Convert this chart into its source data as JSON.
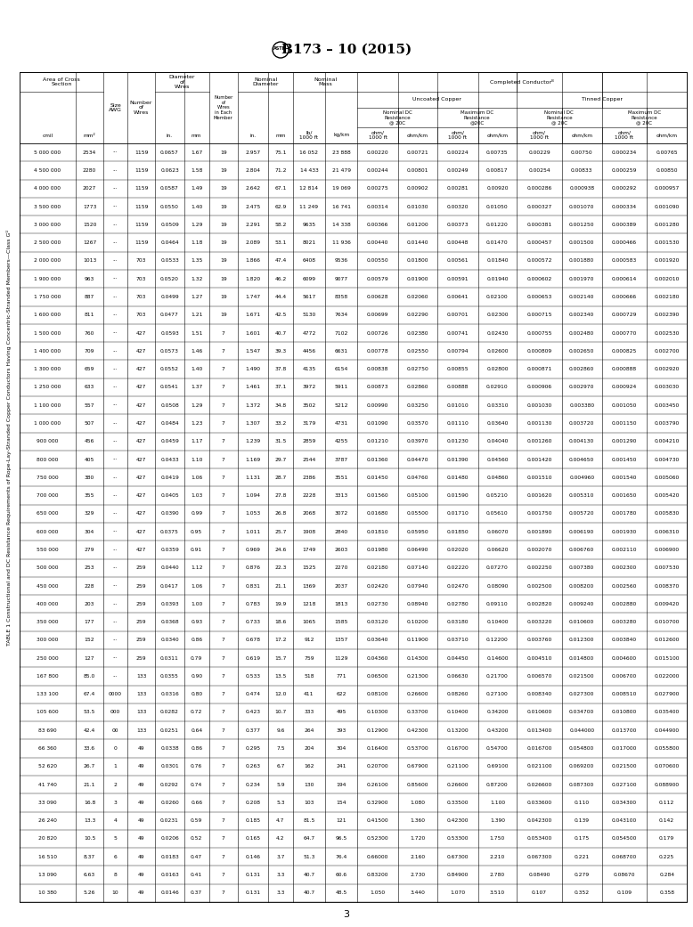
{
  "title": "B173 – 10 (2015)",
  "table_title": "TABLE 1 Constructional and DC Resistance Requirements of Rope-Lay-Stranded Copper Conductors Having Concentric-Stranded Members—Class Gᵁ",
  "rows": [
    [
      "5 000 000",
      "2534",
      "...",
      "1159",
      "0.0657",
      "1.67",
      "19",
      "2.957",
      "75.1",
      "16 052",
      "23 888",
      "0.00220",
      "0.00721",
      "0.00224",
      "0.00735",
      "0.00229",
      "0.00750",
      "0.000234",
      "0.00765"
    ],
    [
      "4 500 000",
      "2280",
      "...",
      "1159",
      "0.0623",
      "1.58",
      "19",
      "2.804",
      "71.2",
      "14 433",
      "21 479",
      "0.00244",
      "0.00801",
      "0.00249",
      "0.00817",
      "0.00254",
      "0.00833",
      "0.000259",
      "0.00850"
    ],
    [
      "4 000 000",
      "2027",
      "...",
      "1159",
      "0.0587",
      "1.49",
      "19",
      "2.642",
      "67.1",
      "12 814",
      "19 069",
      "0.00275",
      "0.00902",
      "0.00281",
      "0.00920",
      "0.000286",
      "0.000938",
      "0.000292",
      "0.000957"
    ],
    [
      "3 500 000",
      "1773",
      "...",
      "1159",
      "0.0550",
      "1.40",
      "19",
      "2.475",
      "62.9",
      "11 249",
      "16 741",
      "0.00314",
      "0.01030",
      "0.00320",
      "0.01050",
      "0.000327",
      "0.001070",
      "0.000334",
      "0.001090"
    ],
    [
      "3 000 000",
      "1520",
      "...",
      "1159",
      "0.0509",
      "1.29",
      "19",
      "2.291",
      "58.2",
      "9635",
      "14 338",
      "0.00366",
      "0.01200",
      "0.00373",
      "0.01220",
      "0.000381",
      "0.001250",
      "0.000389",
      "0.001280"
    ],
    [
      "2 500 000",
      "1267",
      "...",
      "1159",
      "0.0464",
      "1.18",
      "19",
      "2.089",
      "53.1",
      "8021",
      "11 936",
      "0.00440",
      "0.01440",
      "0.00448",
      "0.01470",
      "0.000457",
      "0.001500",
      "0.000466",
      "0.001530"
    ],
    [
      "2 000 000",
      "1013",
      "...",
      "703",
      "0.0533",
      "1.35",
      "19",
      "1.866",
      "47.4",
      "6408",
      "9536",
      "0.00550",
      "0.01800",
      "0.00561",
      "0.01840",
      "0.000572",
      "0.001880",
      "0.000583",
      "0.001920"
    ],
    [
      "1 900 000",
      "963",
      "...",
      "703",
      "0.0520",
      "1.32",
      "19",
      "1.820",
      "46.2",
      "6099",
      "9077",
      "0.00579",
      "0.01900",
      "0.00591",
      "0.01940",
      "0.000602",
      "0.001970",
      "0.000614",
      "0.002010"
    ],
    [
      "1 750 000",
      "887",
      "...",
      "703",
      "0.0499",
      "1.27",
      "19",
      "1.747",
      "44.4",
      "5617",
      "8358",
      "0.00628",
      "0.02060",
      "0.00641",
      "0.02100",
      "0.000653",
      "0.002140",
      "0.000666",
      "0.002180"
    ],
    [
      "1 600 000",
      "811",
      "...",
      "703",
      "0.0477",
      "1.21",
      "19",
      "1.671",
      "42.5",
      "5130",
      "7634",
      "0.00699",
      "0.02290",
      "0.00701",
      "0.02300",
      "0.000715",
      "0.002340",
      "0.000729",
      "0.002390"
    ],
    [
      "1 500 000",
      "760",
      "...",
      "427",
      "0.0593",
      "1.51",
      "7",
      "1.601",
      "40.7",
      "4772",
      "7102",
      "0.00726",
      "0.02380",
      "0.00741",
      "0.02430",
      "0.000755",
      "0.002480",
      "0.000770",
      "0.002530"
    ],
    [
      "1 400 000",
      "709",
      "...",
      "427",
      "0.0573",
      "1.46",
      "7",
      "1.547",
      "39.3",
      "4456",
      "6631",
      "0.00778",
      "0.02550",
      "0.00794",
      "0.02600",
      "0.000809",
      "0.002650",
      "0.000825",
      "0.002700"
    ],
    [
      "1 300 000",
      "659",
      "...",
      "427",
      "0.0552",
      "1.40",
      "7",
      "1.490",
      "37.8",
      "4135",
      "6154",
      "0.00838",
      "0.02750",
      "0.00855",
      "0.02800",
      "0.000871",
      "0.002860",
      "0.000888",
      "0.002920"
    ],
    [
      "1 250 000",
      "633",
      "...",
      "427",
      "0.0541",
      "1.37",
      "7",
      "1.461",
      "37.1",
      "3972",
      "5911",
      "0.00873",
      "0.02860",
      "0.00888",
      "0.02910",
      "0.000906",
      "0.002970",
      "0.000924",
      "0.003030"
    ],
    [
      "1 100 000",
      "557",
      "...",
      "427",
      "0.0508",
      "1.29",
      "7",
      "1.372",
      "34.8",
      "3502",
      "5212",
      "0.00990",
      "0.03250",
      "0.01010",
      "0.03310",
      "0.001030",
      "0.003380",
      "0.001050",
      "0.003450"
    ],
    [
      "1 000 000",
      "507",
      "...",
      "427",
      "0.0484",
      "1.23",
      "7",
      "1.307",
      "33.2",
      "3179",
      "4731",
      "0.01090",
      "0.03570",
      "0.01110",
      "0.03640",
      "0.001130",
      "0.003720",
      "0.001150",
      "0.003790"
    ],
    [
      "900 000",
      "456",
      "...",
      "427",
      "0.0459",
      "1.17",
      "7",
      "1.239",
      "31.5",
      "2859",
      "4255",
      "0.01210",
      "0.03970",
      "0.01230",
      "0.04040",
      "0.001260",
      "0.004130",
      "0.001290",
      "0.004210"
    ],
    [
      "800 000",
      "405",
      "...",
      "427",
      "0.0433",
      "1.10",
      "7",
      "1.169",
      "29.7",
      "2544",
      "3787",
      "0.01360",
      "0.04470",
      "0.01390",
      "0.04560",
      "0.001420",
      "0.004650",
      "0.001450",
      "0.004730"
    ],
    [
      "750 000",
      "380",
      "...",
      "427",
      "0.0419",
      "1.06",
      "7",
      "1.131",
      "28.7",
      "2386",
      "3551",
      "0.01450",
      "0.04760",
      "0.01480",
      "0.04860",
      "0.001510",
      "0.004960",
      "0.001540",
      "0.005060"
    ],
    [
      "700 000",
      "355",
      "...",
      "427",
      "0.0405",
      "1.03",
      "7",
      "1.094",
      "27.8",
      "2228",
      "3313",
      "0.01560",
      "0.05100",
      "0.01590",
      "0.05210",
      "0.001620",
      "0.005310",
      "0.001650",
      "0.005420"
    ],
    [
      "650 000",
      "329",
      "...",
      "427",
      "0.0390",
      "0.99",
      "7",
      "1.053",
      "26.8",
      "2068",
      "3072",
      "0.01680",
      "0.05500",
      "0.01710",
      "0.05610",
      "0.001750",
      "0.005720",
      "0.001780",
      "0.005830"
    ],
    [
      "600 000",
      "304",
      "...",
      "427",
      "0.0375",
      "0.95",
      "7",
      "1.011",
      "25.7",
      "1908",
      "2840",
      "0.01810",
      "0.05950",
      "0.01850",
      "0.06070",
      "0.001890",
      "0.006190",
      "0.001930",
      "0.006310"
    ],
    [
      "550 000",
      "279",
      "...",
      "427",
      "0.0359",
      "0.91",
      "7",
      "0.969",
      "24.6",
      "1749",
      "2603",
      "0.01980",
      "0.06490",
      "0.02020",
      "0.06620",
      "0.002070",
      "0.006760",
      "0.002110",
      "0.006900"
    ],
    [
      "500 000",
      "253",
      "...",
      "259",
      "0.0440",
      "1.12",
      "7",
      "0.876",
      "22.3",
      "1525",
      "2270",
      "0.02180",
      "0.07140",
      "0.02220",
      "0.07270",
      "0.002250",
      "0.007380",
      "0.002300",
      "0.007530"
    ],
    [
      "450 000",
      "228",
      "...",
      "259",
      "0.0417",
      "1.06",
      "7",
      "0.831",
      "21.1",
      "1369",
      "2037",
      "0.02420",
      "0.07940",
      "0.02470",
      "0.08090",
      "0.002500",
      "0.008200",
      "0.002560",
      "0.008370"
    ],
    [
      "400 000",
      "203",
      "...",
      "259",
      "0.0393",
      "1.00",
      "7",
      "0.783",
      "19.9",
      "1218",
      "1813",
      "0.02730",
      "0.08940",
      "0.02780",
      "0.09110",
      "0.002820",
      "0.009240",
      "0.002880",
      "0.009420"
    ],
    [
      "350 000",
      "177",
      "...",
      "259",
      "0.0368",
      "0.93",
      "7",
      "0.733",
      "18.6",
      "1065",
      "1585",
      "0.03120",
      "0.10200",
      "0.03180",
      "0.10400",
      "0.003220",
      "0.010600",
      "0.003280",
      "0.010700"
    ],
    [
      "300 000",
      "152",
      "...",
      "259",
      "0.0340",
      "0.86",
      "7",
      "0.678",
      "17.2",
      "912",
      "1357",
      "0.03640",
      "0.11900",
      "0.03710",
      "0.12200",
      "0.003760",
      "0.012300",
      "0.003840",
      "0.012600"
    ],
    [
      "250 000",
      "127",
      "...",
      "259",
      "0.0311",
      "0.79",
      "7",
      "0.619",
      "15.7",
      "759",
      "1129",
      "0.04360",
      "0.14300",
      "0.04450",
      "0.14600",
      "0.004510",
      "0.014800",
      "0.004600",
      "0.015100"
    ],
    [
      "167 800",
      "85.0",
      "...",
      "133",
      "0.0355",
      "0.90",
      "7",
      "0.533",
      "13.5",
      "518",
      "771",
      "0.06500",
      "0.21300",
      "0.06630",
      "0.21700",
      "0.006570",
      "0.021500",
      "0.006700",
      "0.022000"
    ],
    [
      "133 100",
      "67.4",
      "0000",
      "133",
      "0.0316",
      "0.80",
      "7",
      "0.474",
      "12.0",
      "411",
      "622",
      "0.08100",
      "0.26600",
      "0.08260",
      "0.27100",
      "0.008340",
      "0.027300",
      "0.008510",
      "0.027900"
    ],
    [
      "105 600",
      "53.5",
      "000",
      "133",
      "0.0282",
      "0.72",
      "7",
      "0.423",
      "10.7",
      "333",
      "495",
      "0.10300",
      "0.33700",
      "0.10400",
      "0.34200",
      "0.010600",
      "0.034700",
      "0.010800",
      "0.035400"
    ],
    [
      "83 690",
      "42.4",
      "00",
      "133",
      "0.0251",
      "0.64",
      "7",
      "0.377",
      "9.6",
      "264",
      "393",
      "0.12900",
      "0.42300",
      "0.13200",
      "0.43200",
      "0.013400",
      "0.044000",
      "0.013700",
      "0.044900"
    ],
    [
      "66 360",
      "33.6",
      "0",
      "49",
      "0.0338",
      "0.86",
      "7",
      "0.295",
      "7.5",
      "204",
      "304",
      "0.16400",
      "0.53700",
      "0.16700",
      "0.54700",
      "0.016700",
      "0.054800",
      "0.017000",
      "0.055800"
    ],
    [
      "52 620",
      "26.7",
      "1",
      "49",
      "0.0301",
      "0.76",
      "7",
      "0.263",
      "6.7",
      "162",
      "241",
      "0.20700",
      "0.67900",
      "0.21100",
      "0.69100",
      "0.021100",
      "0.069200",
      "0.021500",
      "0.070600"
    ],
    [
      "41 740",
      "21.1",
      "2",
      "49",
      "0.0292",
      "0.74",
      "7",
      "0.234",
      "5.9",
      "130",
      "194",
      "0.26100",
      "0.85600",
      "0.26600",
      "0.87200",
      "0.026600",
      "0.087300",
      "0.027100",
      "0.088900"
    ],
    [
      "33 090",
      "16.8",
      "3",
      "49",
      "0.0260",
      "0.66",
      "7",
      "0.208",
      "5.3",
      "103",
      "154",
      "0.32900",
      "1.080",
      "0.33500",
      "1.100",
      "0.033600",
      "0.110",
      "0.034300",
      "0.112"
    ],
    [
      "26 240",
      "13.3",
      "4",
      "49",
      "0.0231",
      "0.59",
      "7",
      "0.185",
      "4.7",
      "81.5",
      "121",
      "0.41500",
      "1.360",
      "0.42300",
      "1.390",
      "0.042300",
      "0.139",
      "0.043100",
      "0.142"
    ],
    [
      "20 820",
      "10.5",
      "5",
      "49",
      "0.0206",
      "0.52",
      "7",
      "0.165",
      "4.2",
      "64.7",
      "96.5",
      "0.52300",
      "1.720",
      "0.53300",
      "1.750",
      "0.053400",
      "0.175",
      "0.054500",
      "0.179"
    ],
    [
      "16 510",
      "8.37",
      "6",
      "49",
      "0.0183",
      "0.47",
      "7",
      "0.146",
      "3.7",
      "51.3",
      "76.4",
      "0.66000",
      "2.160",
      "0.67300",
      "2.210",
      "0.067300",
      "0.221",
      "0.068700",
      "0.225"
    ],
    [
      "13 090",
      "6.63",
      "8",
      "49",
      "0.0163",
      "0.41",
      "7",
      "0.131",
      "3.3",
      "40.7",
      "60.6",
      "0.83200",
      "2.730",
      "0.84900",
      "2.780",
      "0.08490",
      "0.279",
      "0.08670",
      "0.284"
    ],
    [
      "10 380",
      "5.26",
      "10",
      "49",
      "0.0146",
      "0.37",
      "7",
      "0.131",
      "3.3",
      "40.7",
      "48.5",
      "1.050",
      "3.440",
      "1.070",
      "3.510",
      "0.107",
      "0.352",
      "0.109",
      "0.358"
    ]
  ]
}
